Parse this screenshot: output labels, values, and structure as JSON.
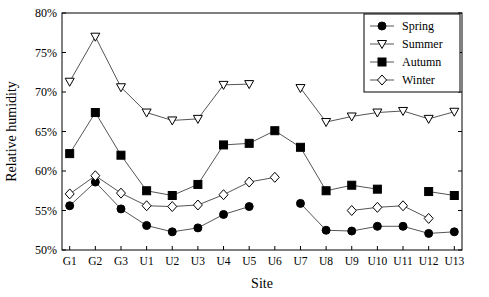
{
  "chart_data": {
    "type": "line",
    "x_label": "Site",
    "y_label": "Relative humidity",
    "categories": [
      "G1",
      "G2",
      "G3",
      "U1",
      "U2",
      "U3",
      "U4",
      "U5",
      "U6",
      "U7",
      "U8",
      "U9",
      "U10",
      "U11",
      "U12",
      "U13"
    ],
    "series": [
      {
        "name": "Spring",
        "color": "#000000",
        "marker": "circle",
        "values": [
          55.6,
          58.6,
          55.2,
          53.1,
          52.3,
          52.8,
          54.5,
          55.5,
          null,
          55.9,
          52.5,
          52.4,
          53.0,
          53.0,
          52.1,
          52.3
        ]
      },
      {
        "name": "Summer",
        "color": "#000000",
        "marker": "triangle-down-open",
        "values": [
          71.3,
          77.0,
          70.6,
          67.4,
          66.4,
          66.6,
          70.9,
          71.0,
          null,
          70.5,
          66.2,
          66.9,
          67.4,
          67.6,
          66.6,
          67.5
        ]
      },
      {
        "name": "Autumn",
        "color": "#000000",
        "marker": "square",
        "values": [
          62.2,
          67.4,
          62.0,
          57.5,
          56.9,
          58.3,
          63.3,
          63.5,
          65.1,
          63.0,
          57.5,
          58.2,
          57.7,
          null,
          57.4,
          56.9
        ]
      },
      {
        "name": "Winter",
        "color": "#000000",
        "marker": "diamond-open",
        "values": [
          57.1,
          59.4,
          57.2,
          55.6,
          55.5,
          55.7,
          57.0,
          58.6,
          59.2,
          null,
          null,
          55.0,
          55.4,
          55.6,
          54.0,
          null
        ]
      }
    ],
    "ylim": [
      50,
      80
    ],
    "yticks": [
      {
        "value": 50,
        "label": "50%"
      },
      {
        "value": 55,
        "label": "55%"
      },
      {
        "value": 60,
        "label": "60%"
      },
      {
        "value": 65,
        "label": "65%"
      },
      {
        "value": 70,
        "label": "70%"
      },
      {
        "value": 75,
        "label": "75%"
      },
      {
        "value": 80,
        "label": "80%"
      }
    ],
    "legend": "top-right",
    "grid": false
  }
}
